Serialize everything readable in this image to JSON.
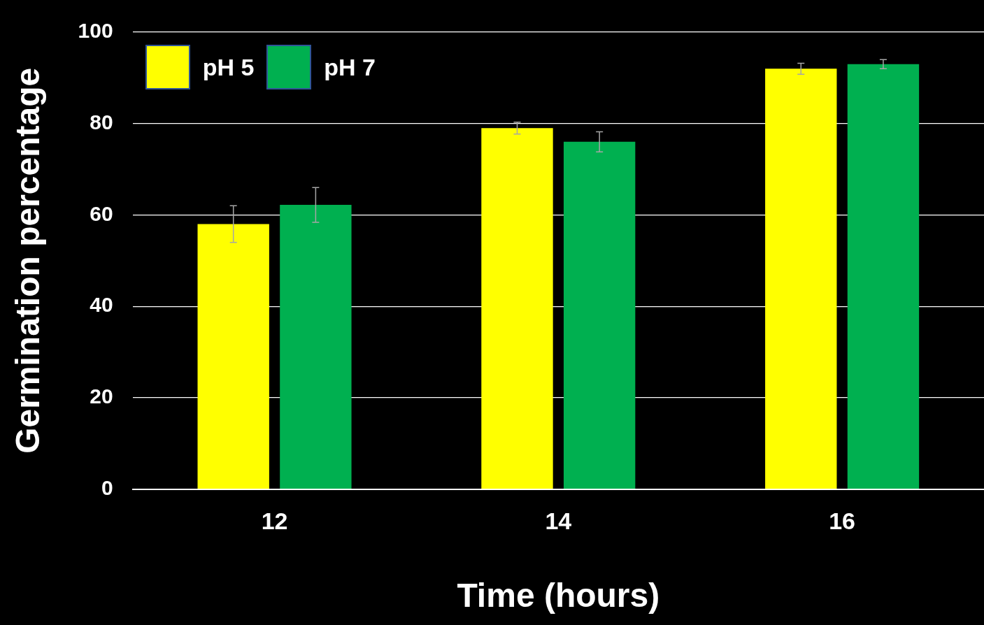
{
  "chart_data": {
    "type": "bar",
    "xlabel": "Time (hours)",
    "ylabel": "Germination percentage",
    "categories": [
      "12",
      "14",
      "16"
    ],
    "series": [
      {
        "name": "pH 5",
        "color": "#ffff00",
        "values": [
          58,
          79,
          92
        ],
        "errors": [
          4,
          1.3,
          1.2
        ]
      },
      {
        "name": "pH 7",
        "color": "#00b050",
        "values": [
          62.2,
          76,
          93
        ],
        "errors": [
          3.8,
          2.2,
          1
        ]
      }
    ],
    "ylim": [
      0,
      100
    ],
    "yticks": [
      0,
      20,
      40,
      60,
      80,
      100
    ],
    "grid": "y",
    "legend": "top left"
  }
}
